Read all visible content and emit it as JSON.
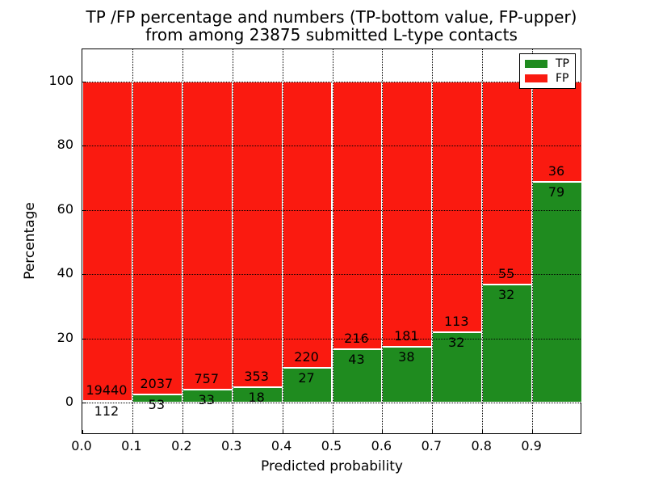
{
  "chart_data": {
    "type": "bar",
    "stacked": true,
    "normalized_to_percent": true,
    "title": "TP /FP percentage and numbers (TP-bottom value, FP-upper) from among 23875 submitted L-type contacts",
    "title_line1": "TP /FP percentage and numbers (TP-bottom value, FP-upper)",
    "title_line2": "from among 23875 submitted L-type contacts",
    "xlabel": "Predicted probability",
    "ylabel": "Percentage",
    "categories": [
      "0.0",
      "0.1",
      "0.2",
      "0.3",
      "0.4",
      "0.5",
      "0.6",
      "0.7",
      "0.8",
      "0.9"
    ],
    "bin_width": 0.1,
    "y_ticks": [
      0,
      20,
      40,
      60,
      80,
      100
    ],
    "xlim": [
      0.0,
      1.0
    ],
    "ylim": [
      -10,
      110
    ],
    "grid": "dotted",
    "legend_position": "upper right",
    "total_submitted_contacts": 23875,
    "series": [
      {
        "name": "TP",
        "color": "#1f8b1f",
        "counts": [
          112,
          53,
          33,
          18,
          27,
          43,
          38,
          32,
          32,
          79
        ],
        "percentages": [
          0.57,
          2.54,
          4.18,
          4.85,
          10.93,
          16.6,
          17.35,
          22.07,
          36.78,
          68.7
        ]
      },
      {
        "name": "FP",
        "color": "#fa1a10",
        "counts": [
          19440,
          2037,
          757,
          353,
          220,
          216,
          181,
          113,
          55,
          36
        ],
        "percentages": [
          99.43,
          97.46,
          95.82,
          95.15,
          89.07,
          83.4,
          82.65,
          77.93,
          63.22,
          31.3
        ]
      }
    ],
    "colors": {
      "tp": "#1f8b1f",
      "fp": "#fa1a10",
      "grid": "#000000",
      "background": "#ffffff",
      "bar_edge": "#ffffff"
    }
  }
}
